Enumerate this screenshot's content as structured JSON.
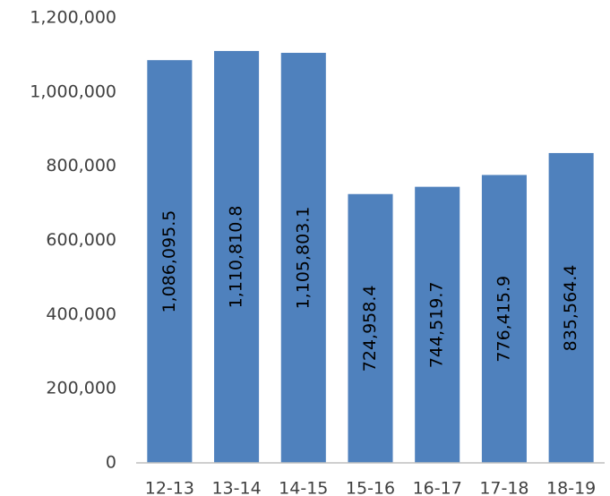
{
  "chart_data": {
    "type": "bar",
    "categories": [
      "12-13",
      "13-14",
      "14-15",
      "15-16",
      "16-17",
      "17-18",
      "18-19"
    ],
    "values": [
      1086095.5,
      1110810.8,
      1105803.1,
      724958.4,
      744519.7,
      776415.9,
      835564.4
    ],
    "value_labels": [
      "1,086,095.5",
      "1,110,810.8",
      "1,105,803.1",
      "724,958.4",
      "744,519.7",
      "776,415.9",
      "835,564.4"
    ],
    "color": "#4f81bd",
    "ylim": [
      0,
      1200000
    ],
    "yticks": [
      0,
      {
        "value": 200000,
        "label": "200,000"
      },
      {
        "value": 400000,
        "label": "400,000"
      },
      {
        "value": 600000,
        "label": "600,000"
      },
      {
        "value": 800000,
        "label": "800,000"
      },
      {
        "value": 1000000,
        "label": "1,000,000"
      },
      {
        "value": 1200000,
        "label": "1,200,000"
      }
    ],
    "grid": false
  }
}
